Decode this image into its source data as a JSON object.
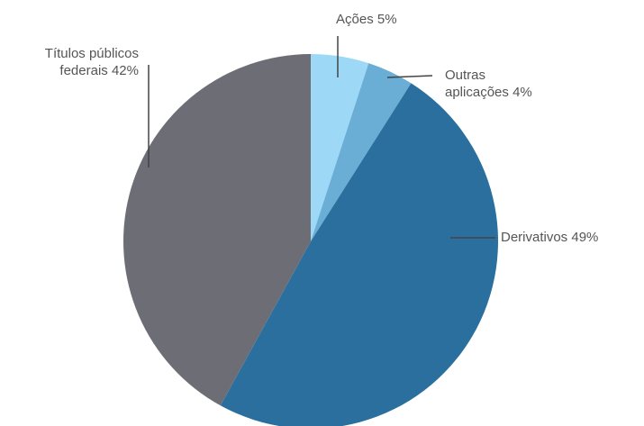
{
  "chart_data": {
    "type": "pie",
    "categories": [
      "Ações",
      "Outras aplicações",
      "Derivativos",
      "Títulos públicos federais"
    ],
    "values": [
      5,
      4,
      49,
      42
    ],
    "value_labels": [
      "5%",
      "4%",
      "49%",
      "42%"
    ],
    "colors": [
      "#9dd9f7",
      "#6aaed6",
      "#2a6f9e",
      "#6d6e75"
    ]
  }
}
